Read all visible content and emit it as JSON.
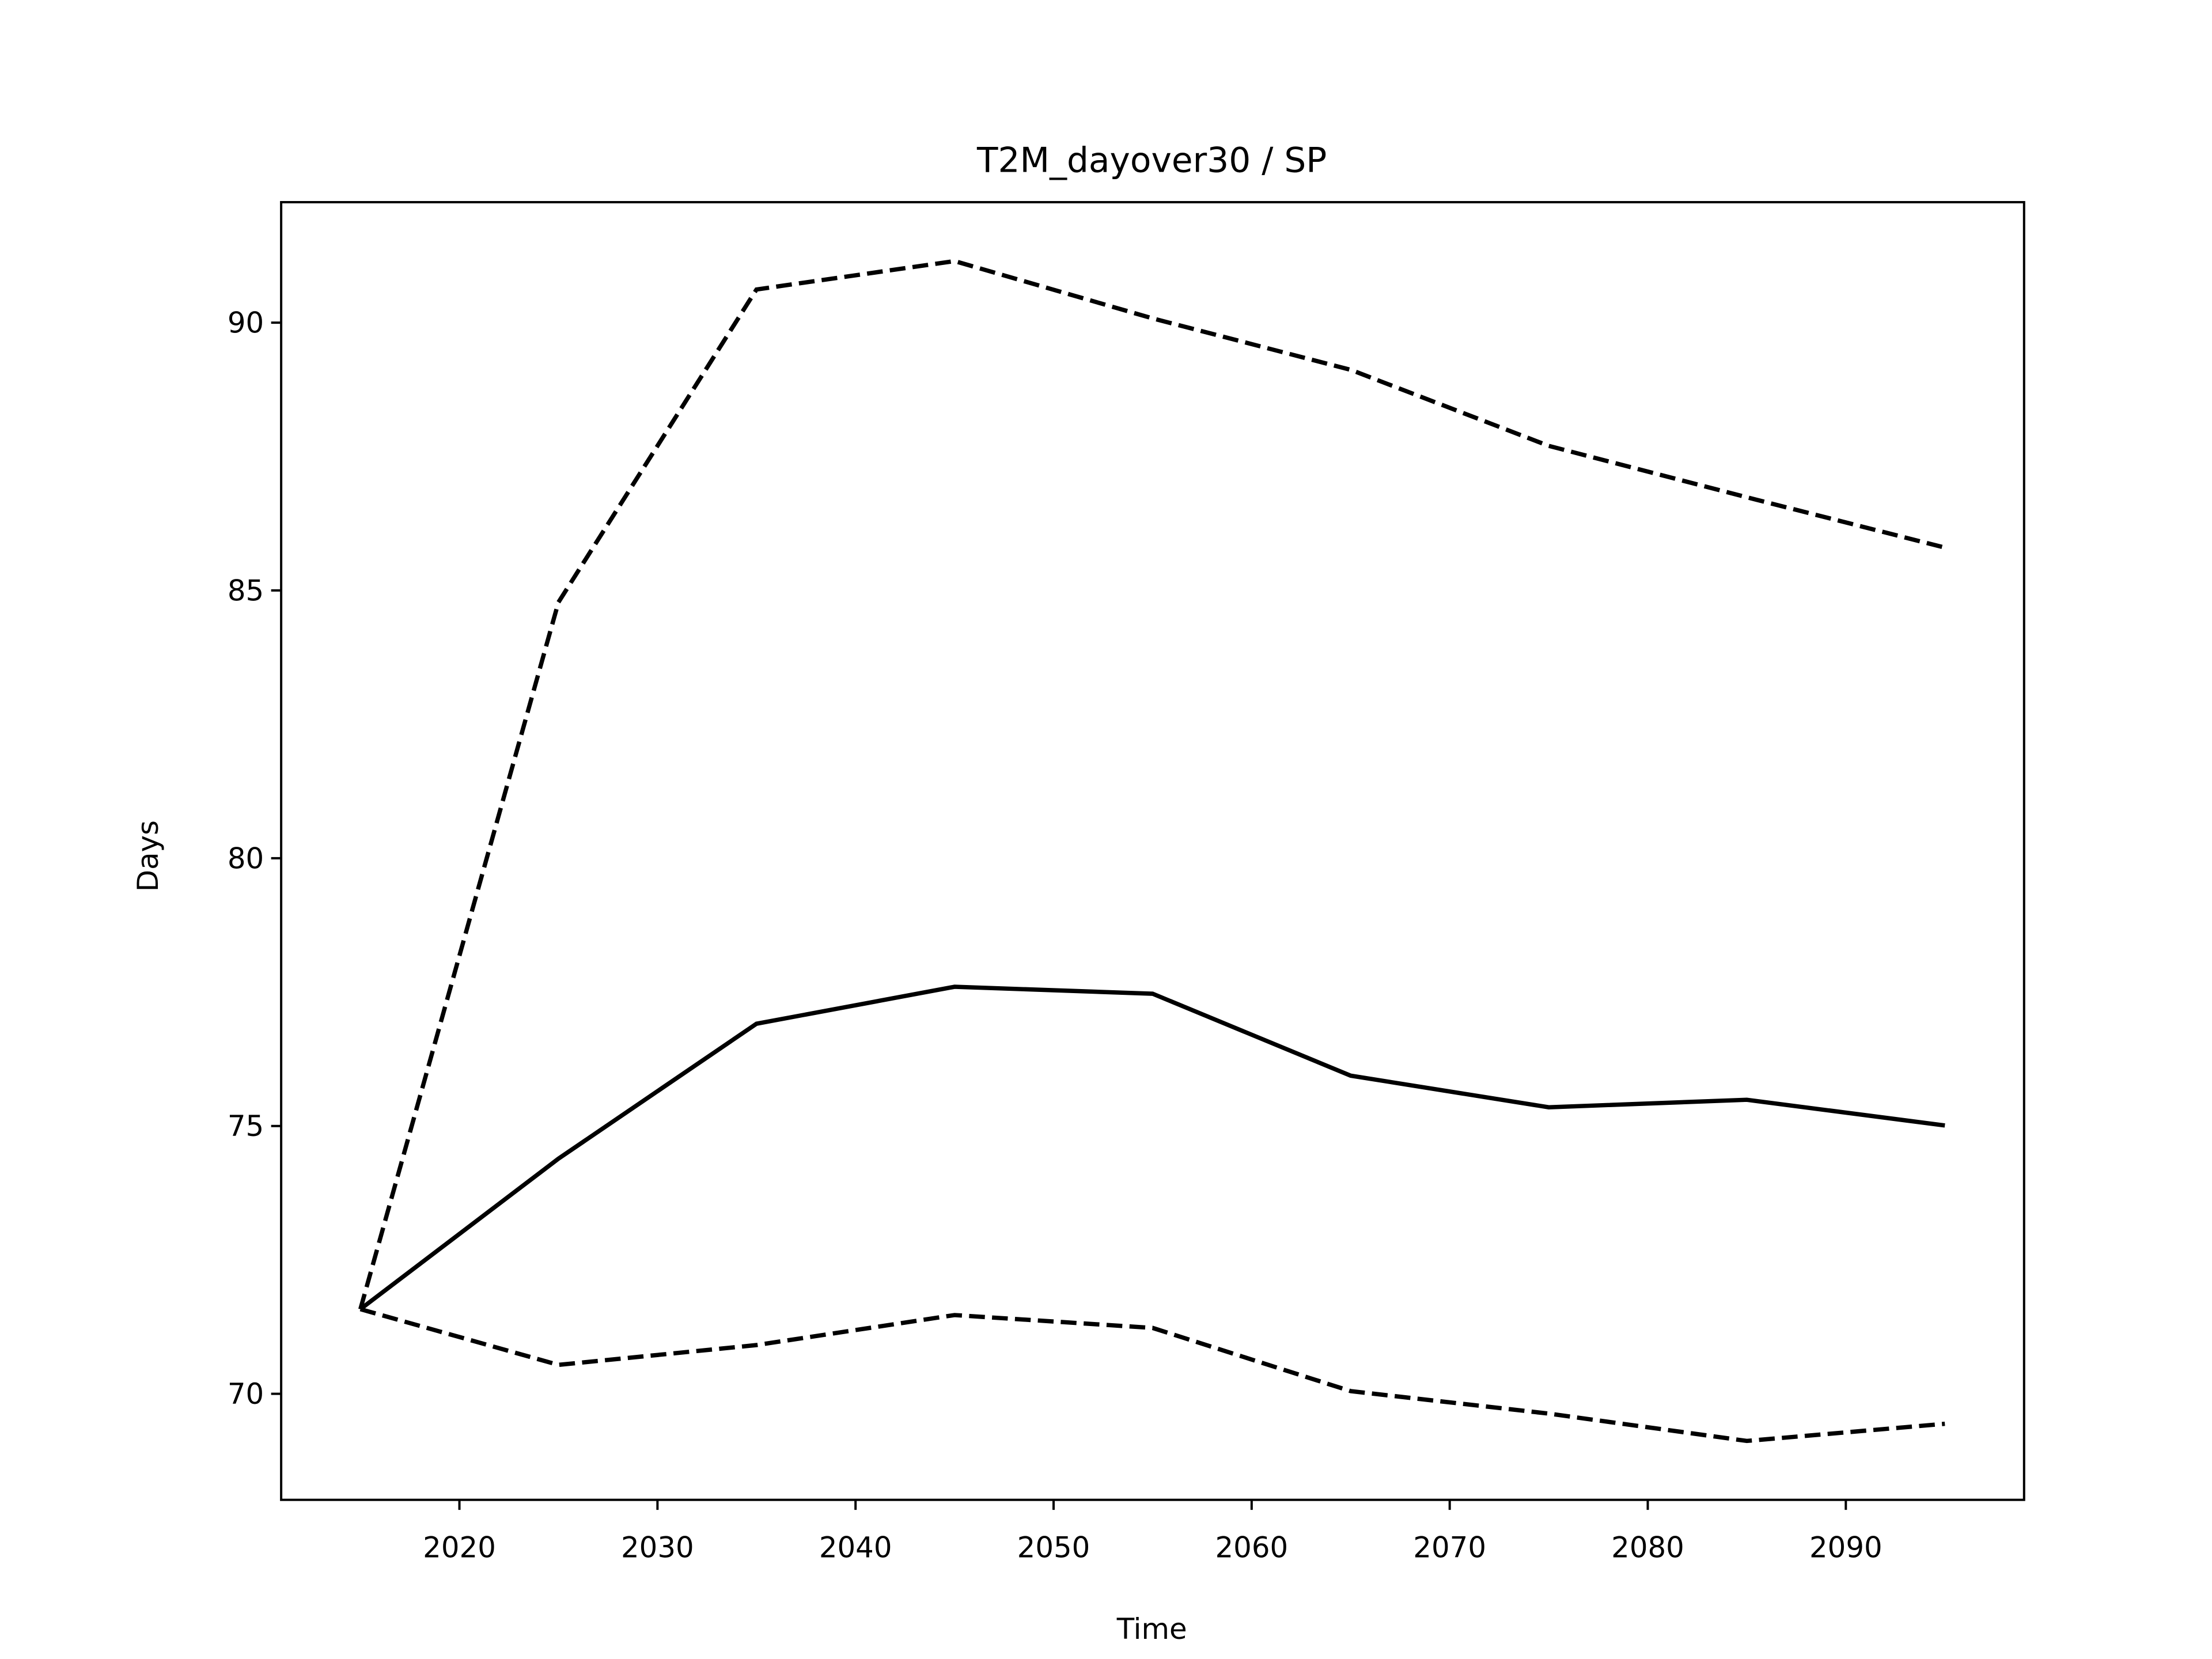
{
  "chart_data": {
    "type": "line",
    "title": "T2M_dayover30 / SP",
    "xlabel": "Time",
    "ylabel": "Days",
    "x": [
      2015,
      2025,
      2035,
      2045,
      2055,
      2065,
      2075,
      2085,
      2095
    ],
    "series": [
      {
        "color": "#000000",
        "linestyle": "solid",
        "values": [
          71.58,
          74.39,
          76.91,
          77.6,
          77.47,
          75.94,
          75.35,
          75.49,
          75.01
        ]
      },
      {
        "color": "#000000",
        "linestyle": "dashed",
        "values": [
          71.58,
          84.78,
          90.62,
          91.15,
          90.08,
          89.12,
          87.7,
          86.74,
          85.8
        ]
      },
      {
        "color": "#000000",
        "linestyle": "dashed",
        "values": [
          71.58,
          70.54,
          70.91,
          71.47,
          71.23,
          70.05,
          69.63,
          69.12,
          69.44
        ]
      }
    ],
    "xlim": [
      2011,
      2099
    ],
    "ylim": [
      68.02,
      92.25
    ],
    "xticks": [
      2020,
      2030,
      2040,
      2050,
      2060,
      2070,
      2080,
      2090
    ],
    "yticks": [
      70,
      75,
      80,
      85,
      90
    ],
    "grid": false
  }
}
